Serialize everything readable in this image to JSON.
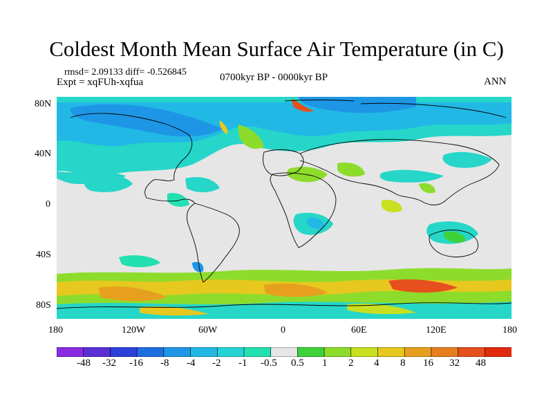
{
  "title": "Coldest Month Mean Surface Air Temperature (in C)",
  "stats": "rmsd= 2.09133 diff= -0.526845",
  "expt": "Expt = xqFUh-xqfua",
  "period": "0700kyr BP - 0000kyr BP",
  "season": "ANN",
  "lat_labels": [
    "80N",
    "40N",
    "0",
    "40S",
    "80S"
  ],
  "lon_labels": [
    "180",
    "120W",
    "60W",
    "0",
    "60E",
    "120E",
    "180"
  ],
  "colorbar": {
    "labels": [
      "-48",
      "-32",
      "-16",
      "-8",
      "-4",
      "-2",
      "-1",
      "-0.5",
      "0.5",
      "1",
      "2",
      "4",
      "8",
      "16",
      "32",
      "48"
    ],
    "colors": [
      "#8a2be2",
      "#5a2fd6",
      "#2c3fd8",
      "#1f6ee0",
      "#1e96e6",
      "#22b8e6",
      "#25d2d4",
      "#23e0b0",
      "#e6e6e6",
      "#3ed23a",
      "#8ddc2c",
      "#c8e020",
      "#e6c81e",
      "#e6a01e",
      "#e67e1e",
      "#e6501e",
      "#e02a0e"
    ]
  },
  "legend_colors": {
    "land_outline": "#000000",
    "neutral": "#e6e6e6"
  }
}
